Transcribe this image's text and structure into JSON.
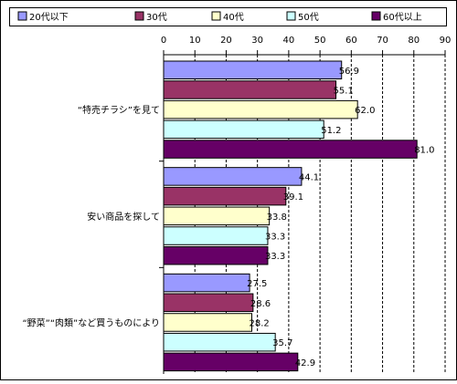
{
  "chart_data": {
    "type": "bar",
    "orientation": "horizontal",
    "xlim": [
      0,
      90
    ],
    "xticks": [
      0,
      10,
      20,
      30,
      40,
      50,
      60,
      70,
      80,
      90
    ],
    "x_axis_position": "top",
    "grid": "vertical dashed",
    "legend_position": "top",
    "categories": [
      "“特売チラシ”を見て",
      "安い商品を探して",
      "“野菜”“肉類”など買うものにより"
    ],
    "series": [
      {
        "name": "20代以下",
        "color": "#9999ff",
        "values": [
          56.9,
          44.1,
          27.5
        ]
      },
      {
        "name": "30代",
        "color": "#993366",
        "values": [
          55.1,
          39.1,
          28.6
        ]
      },
      {
        "name": "40代",
        "color": "#ffffcc",
        "values": [
          62.0,
          33.8,
          28.2
        ]
      },
      {
        "name": "50代",
        "color": "#ccffff",
        "values": [
          51.2,
          33.3,
          35.7
        ]
      },
      {
        "name": "60代以上",
        "color": "#660066",
        "values": [
          81.0,
          33.3,
          42.9
        ]
      }
    ],
    "value_labels": [
      [
        "56.9",
        "55.1",
        "62.0",
        "51.2",
        "81.0"
      ],
      [
        "44.1",
        "39.1",
        "33.8",
        "33.3",
        "33.3"
      ],
      [
        "27.5",
        "28.6",
        "28.2",
        "35.7",
        "42.9"
      ]
    ]
  }
}
